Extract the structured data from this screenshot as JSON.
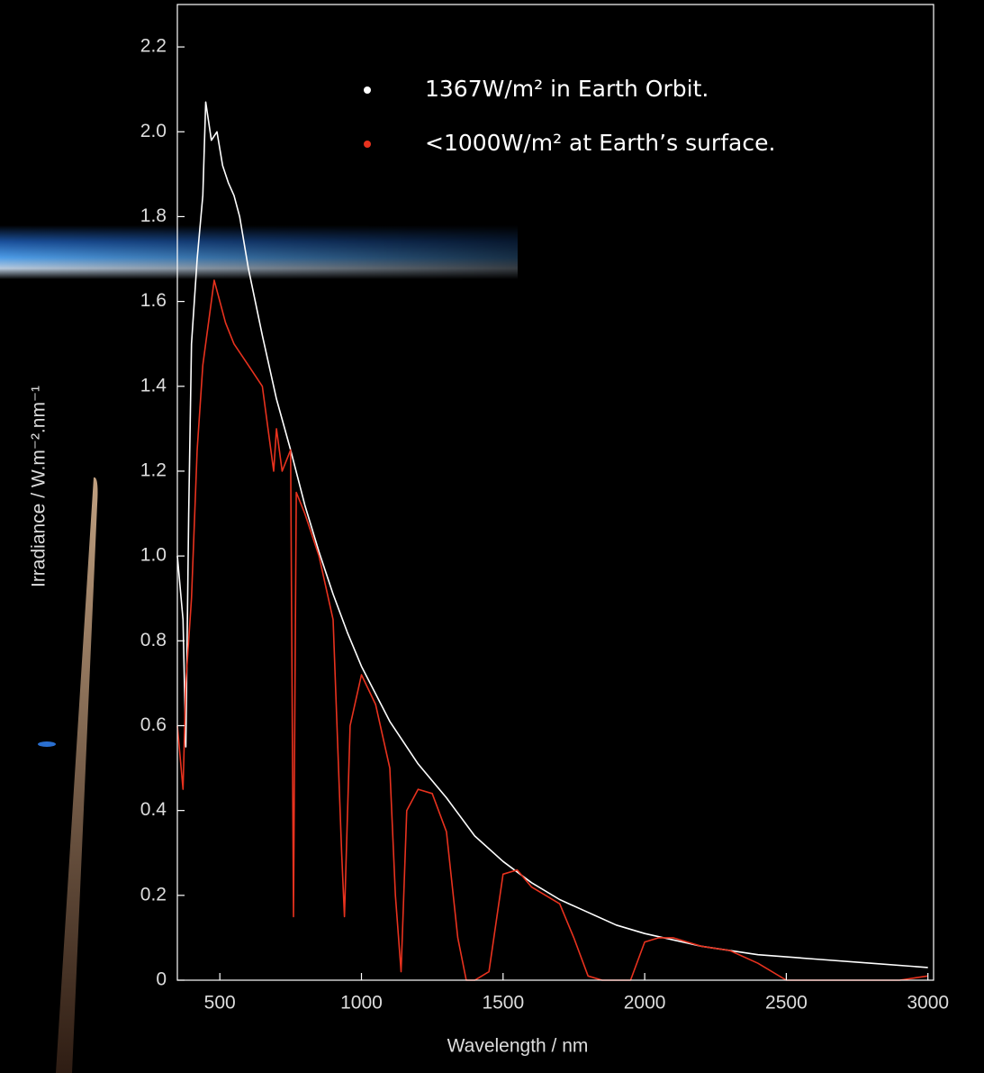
{
  "chart_data": {
    "type": "line",
    "xlabel": "Wavelength / nm",
    "ylabel": "Irradiance / W.m⁻².nm⁻¹",
    "xlim": [
      350,
      3020
    ],
    "ylim": [
      0,
      2.3
    ],
    "xticks": [
      500,
      1000,
      1500,
      2000,
      2500,
      3000
    ],
    "yticks": [
      0,
      0.2,
      0.4,
      0.6,
      0.8,
      {
        "value": 1,
        "label": "1.0"
      },
      1.2,
      1.4,
      1.6,
      1.8,
      {
        "value": 2,
        "label": "2.0"
      },
      2.2
    ],
    "legend": "upper right",
    "series": [
      {
        "name": "1367W/m² in Earth Orbit.",
        "color": "#ffffff",
        "x": [
          350,
          370,
          380,
          390,
          400,
          420,
          440,
          450,
          470,
          490,
          510,
          530,
          550,
          570,
          600,
          650,
          700,
          750,
          800,
          850,
          900,
          950,
          1000,
          1100,
          1200,
          1300,
          1400,
          1500,
          1600,
          1700,
          1800,
          1900,
          2000,
          2200,
          2400,
          2600,
          2800,
          3000
        ],
        "values": [
          1.0,
          0.85,
          0.55,
          1.1,
          1.5,
          1.7,
          1.85,
          2.07,
          1.98,
          2.0,
          1.92,
          1.88,
          1.85,
          1.8,
          1.68,
          1.52,
          1.37,
          1.25,
          1.12,
          1.01,
          0.91,
          0.82,
          0.74,
          0.61,
          0.51,
          0.43,
          0.34,
          0.28,
          0.23,
          0.19,
          0.16,
          0.13,
          0.11,
          0.08,
          0.06,
          0.05,
          0.04,
          0.03
        ]
      },
      {
        "name": "<1000W/m² at Earth’s surface.",
        "color": "#e8321e",
        "x": [
          350,
          370,
          380,
          400,
          420,
          440,
          460,
          480,
          500,
          520,
          550,
          600,
          650,
          690,
          700,
          720,
          750,
          760,
          770,
          800,
          850,
          900,
          930,
          940,
          960,
          1000,
          1050,
          1100,
          1120,
          1140,
          1160,
          1200,
          1250,
          1300,
          1340,
          1370,
          1400,
          1450,
          1500,
          1550,
          1600,
          1700,
          1750,
          1800,
          1850,
          1950,
          2000,
          2050,
          2100,
          2200,
          2300,
          2400,
          2500,
          2900,
          3000
        ],
        "values": [
          0.6,
          0.45,
          0.7,
          0.9,
          1.25,
          1.45,
          1.55,
          1.65,
          1.6,
          1.55,
          1.5,
          1.45,
          1.4,
          1.2,
          1.3,
          1.2,
          1.25,
          0.15,
          1.15,
          1.1,
          1.0,
          0.85,
          0.3,
          0.15,
          0.6,
          0.72,
          0.65,
          0.5,
          0.2,
          0.02,
          0.4,
          0.45,
          0.44,
          0.35,
          0.1,
          0,
          0,
          0.02,
          0.25,
          0.26,
          0.22,
          0.18,
          0.1,
          0.01,
          0,
          0,
          0.09,
          0.1,
          0.1,
          0.08,
          0.07,
          0.04,
          0,
          0,
          0.01
        ]
      }
    ]
  }
}
